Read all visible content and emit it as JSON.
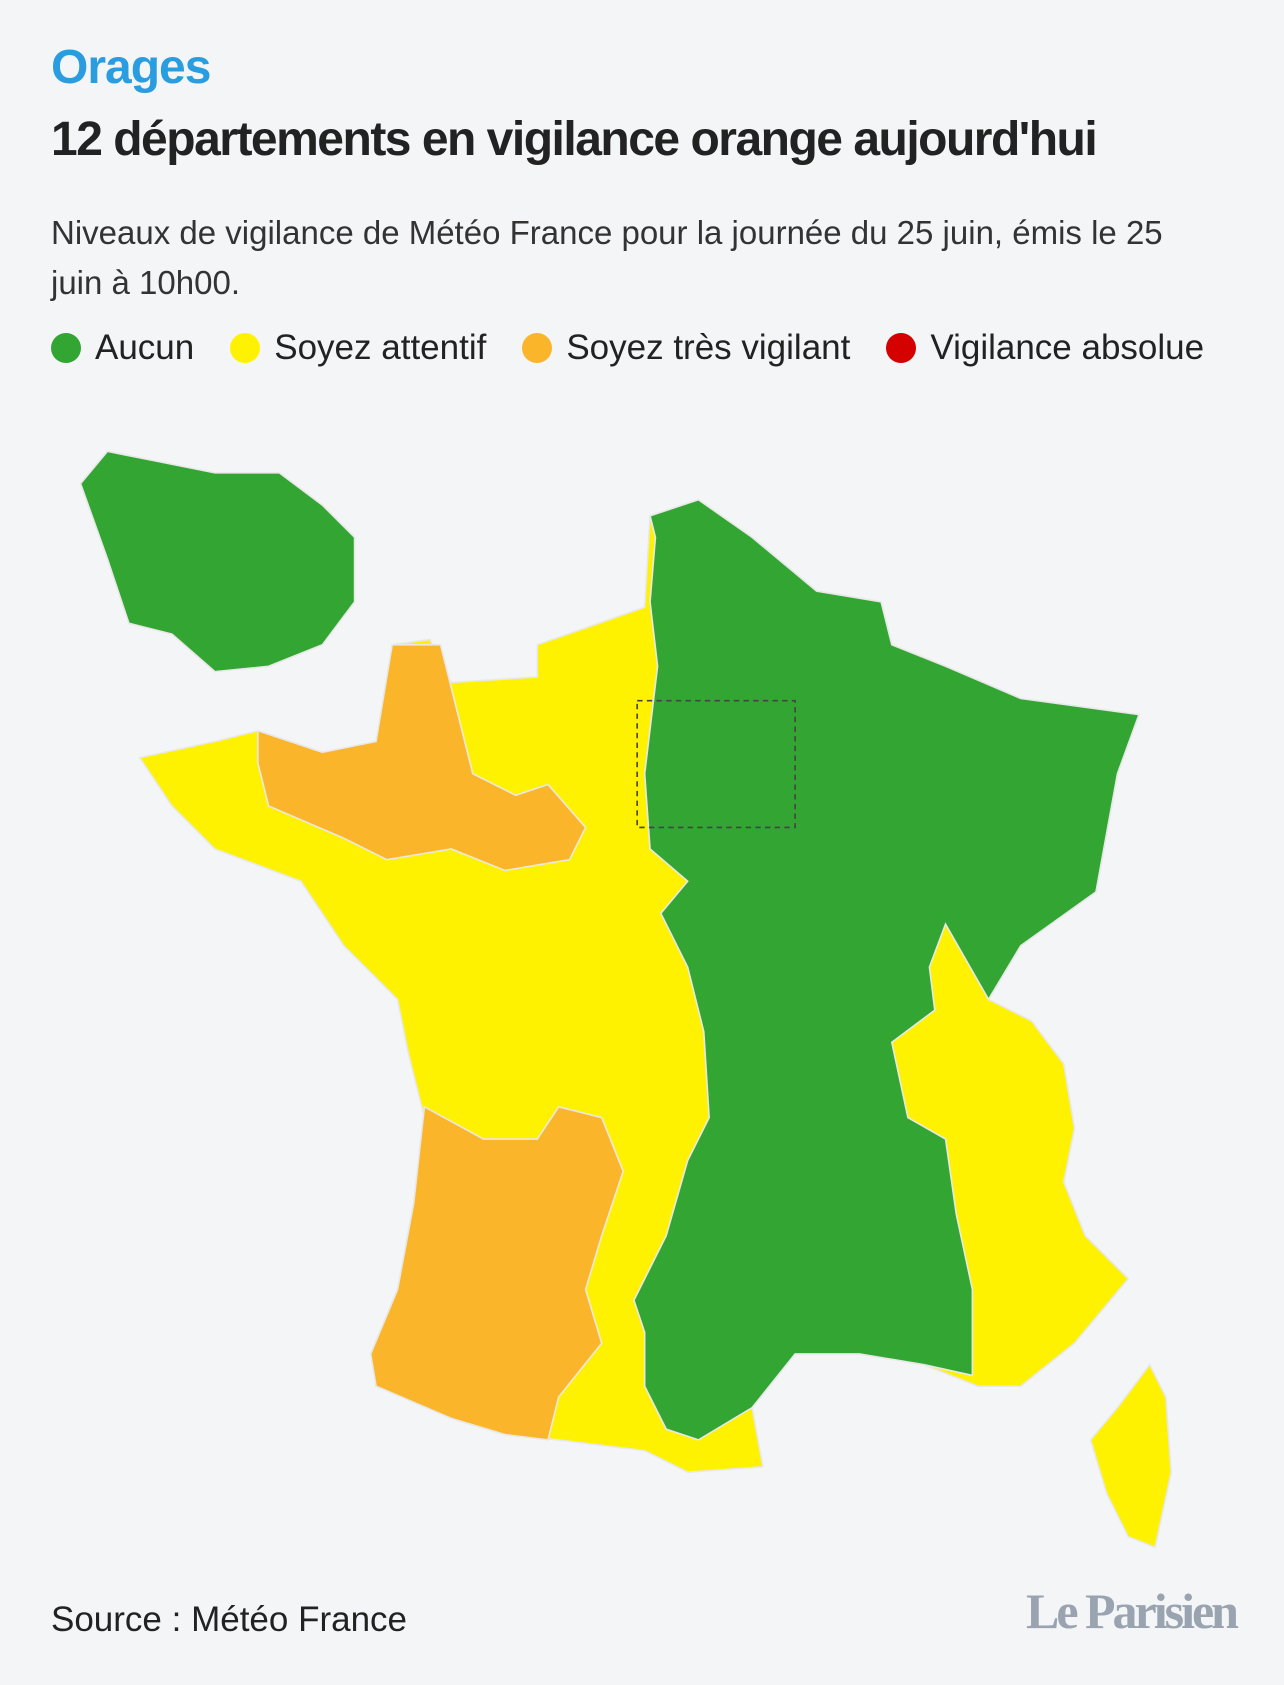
{
  "kicker": "Orages",
  "title": "12 départements en vigilance orange aujourd'hui",
  "subtitle": "Niveaux de vigilance de Météo France pour la journée du 25 juin, émis le 25 juin à 10h00.",
  "legend": [
    {
      "name": "Aucun",
      "color": "#33a532"
    },
    {
      "name": "Soyez attentif",
      "color": "#fff200"
    },
    {
      "name": "Soyez très vigilant",
      "color": "#fbb52b"
    },
    {
      "name": "Vigilance absolue",
      "color": "#d50000"
    }
  ],
  "source": "Source : Météo France",
  "logo": "Le Parisien"
}
